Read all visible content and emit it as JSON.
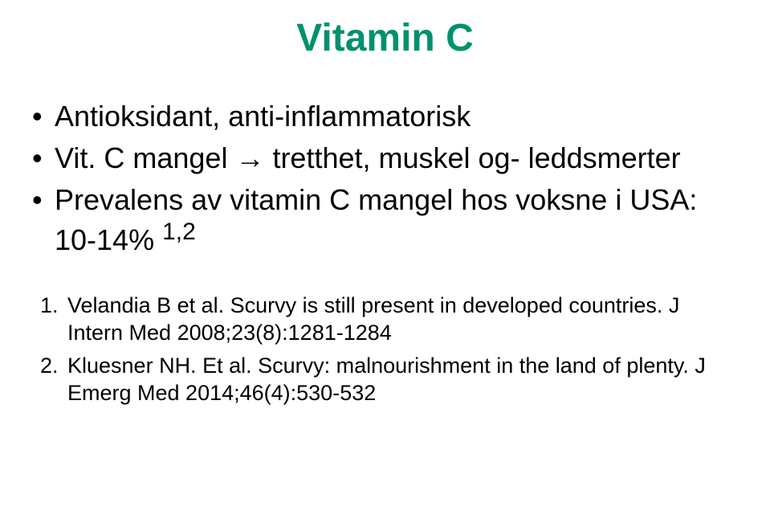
{
  "title": {
    "text": "Vitamin C",
    "color": "#00916e",
    "font_size_pt": 36,
    "font_weight": "bold",
    "align": "center"
  },
  "bullets": {
    "font_size_pt": 27,
    "color": "#000000",
    "items": [
      "Antioksidant, anti-inflammatorisk",
      "Vit. C mangel → tretthet, muskel og- leddsmerter",
      "Prevalens av vitamin C mangel hos voksne i USA: 10-14% "
    ],
    "superscript_on_item": 2,
    "superscript_text": "1,2"
  },
  "references": {
    "font_size_pt": 20,
    "color": "#000000",
    "items": [
      "Velandia B et al. Scurvy is still present in developed countries. J Intern Med 2008;23(8):1281-1284",
      "Kluesner NH. Et al. Scurvy: malnourishment in the land of plenty. J Emerg Med 2014;46(4):530-532"
    ]
  },
  "background_color": "#ffffff"
}
